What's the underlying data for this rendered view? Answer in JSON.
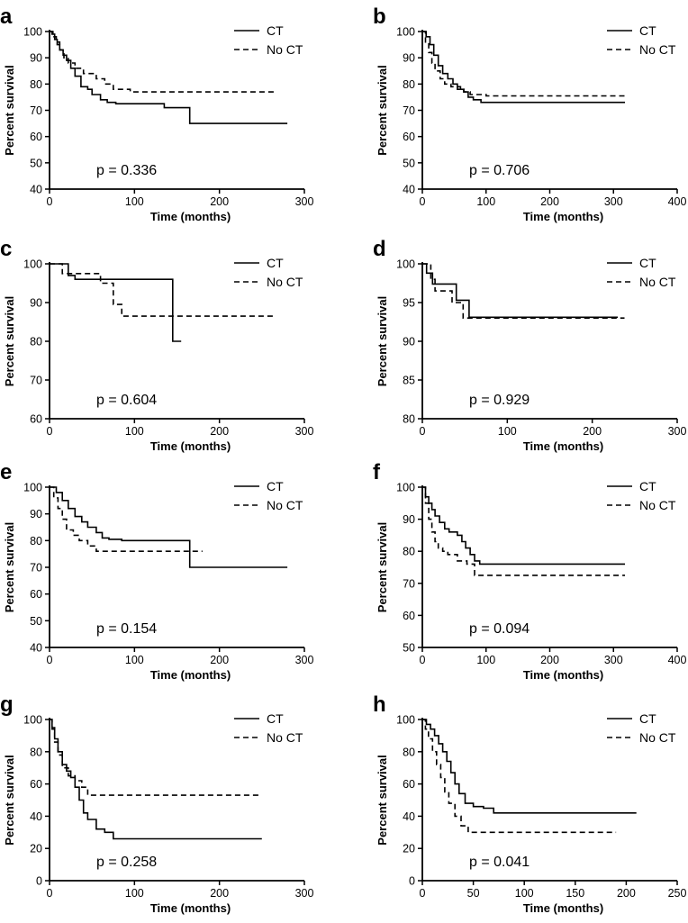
{
  "chart_data": [
    {
      "panel": "a",
      "type": "line",
      "xlabel": "Time (months)",
      "ylabel": "Percent survival",
      "xlim": [
        0,
        300
      ],
      "ylim": [
        40,
        100
      ],
      "xticks": [
        0,
        100,
        200,
        300
      ],
      "yticks": [
        40,
        50,
        60,
        70,
        80,
        90,
        100
      ],
      "p_value": "p = 0.336",
      "legend": [
        "CT",
        "No CT"
      ],
      "series": [
        {
          "name": "CT",
          "style": "solid",
          "x": [
            0,
            3,
            6,
            9,
            12,
            16,
            20,
            25,
            30,
            37,
            45,
            50,
            55,
            60,
            68,
            78,
            88,
            95,
            135,
            165,
            280
          ],
          "y": [
            100,
            99,
            97,
            95,
            93,
            91,
            89,
            86,
            83,
            79,
            78,
            76,
            76,
            74,
            73,
            72.5,
            72.5,
            72.5,
            71,
            65,
            65
          ]
        },
        {
          "name": "No CT",
          "style": "dashed",
          "x": [
            0,
            4,
            8,
            12,
            17,
            22,
            30,
            40,
            55,
            65,
            75,
            80,
            95,
            110,
            130,
            265
          ],
          "y": [
            100,
            98,
            96,
            93,
            90,
            88,
            86,
            84,
            82,
            80,
            78,
            78,
            77,
            77,
            77,
            77
          ]
        }
      ]
    },
    {
      "panel": "b",
      "type": "line",
      "xlabel": "Time (months)",
      "ylabel": "Percent survival",
      "xlim": [
        0,
        400
      ],
      "ylim": [
        40,
        100
      ],
      "xticks": [
        0,
        100,
        200,
        300,
        400
      ],
      "yticks": [
        40,
        50,
        60,
        70,
        80,
        90,
        100
      ],
      "p_value": "p = 0.706",
      "legend": [
        "CT",
        "No CT"
      ],
      "series": [
        {
          "name": "CT",
          "style": "solid",
          "x": [
            0,
            6,
            12,
            18,
            25,
            32,
            40,
            48,
            55,
            60,
            65,
            72,
            80,
            92,
            318
          ],
          "y": [
            100,
            98,
            95,
            91,
            87,
            84,
            82,
            80,
            79,
            78,
            77,
            75,
            74,
            73,
            73
          ]
        },
        {
          "name": "No CT",
          "style": "dashed",
          "x": [
            0,
            5,
            10,
            15,
            20,
            28,
            35,
            45,
            55,
            65,
            75,
            85,
            100,
            318
          ],
          "y": [
            100,
            96,
            92,
            88,
            85,
            82,
            80,
            79,
            78,
            77,
            76,
            76,
            75.5,
            75.5
          ]
        }
      ]
    },
    {
      "panel": "c",
      "type": "line",
      "xlabel": "Time (months)",
      "ylabel": "Percent survival",
      "xlim": [
        0,
        300
      ],
      "ylim": [
        60,
        100
      ],
      "xticks": [
        0,
        100,
        200,
        300
      ],
      "yticks": [
        60,
        70,
        80,
        90,
        100
      ],
      "p_value": "p = 0.604",
      "legend": [
        "CT",
        "No CT"
      ],
      "series": [
        {
          "name": "CT",
          "style": "solid",
          "x": [
            0,
            22,
            30,
            135,
            145,
            155
          ],
          "y": [
            100,
            97,
            96,
            96,
            80,
            80
          ]
        },
        {
          "name": "No CT",
          "style": "dashed",
          "x": [
            0,
            15,
            25,
            60,
            75,
            85,
            95,
            265
          ],
          "y": [
            100,
            97.5,
            97.5,
            95,
            89.5,
            86.5,
            86.5,
            86.5
          ]
        }
      ]
    },
    {
      "panel": "d",
      "type": "line",
      "xlabel": "Time (months)",
      "ylabel": "Percent survival",
      "xlim": [
        0,
        300
      ],
      "ylim": [
        80,
        100
      ],
      "xticks": [
        0,
        100,
        200,
        300
      ],
      "yticks": [
        80,
        85,
        90,
        95,
        100
      ],
      "p_value": "p = 0.929",
      "legend": [
        "CT",
        "No CT"
      ],
      "series": [
        {
          "name": "CT",
          "style": "solid",
          "x": [
            0,
            5,
            12,
            40,
            55,
            230
          ],
          "y": [
            100,
            98.8,
            97.4,
            95.3,
            93.1,
            93.1
          ]
        },
        {
          "name": "No CT",
          "style": "dashed",
          "x": [
            0,
            10,
            15,
            35,
            48,
            238
          ],
          "y": [
            100,
            98,
            96.5,
            95,
            93,
            93
          ]
        }
      ]
    },
    {
      "panel": "e",
      "type": "line",
      "xlabel": "Time (months)",
      "ylabel": "Percent survival",
      "xlim": [
        0,
        300
      ],
      "ylim": [
        40,
        100
      ],
      "xticks": [
        0,
        100,
        200,
        300
      ],
      "yticks": [
        40,
        50,
        60,
        70,
        80,
        90,
        100
      ],
      "p_value": "p = 0.154",
      "legend": [
        "CT",
        "No CT"
      ],
      "series": [
        {
          "name": "CT",
          "style": "solid",
          "x": [
            0,
            8,
            15,
            22,
            30,
            38,
            45,
            55,
            62,
            70,
            85,
            100,
            165,
            280
          ],
          "y": [
            100,
            98,
            95,
            92,
            89,
            87,
            85,
            83,
            81,
            80.5,
            80,
            80,
            70,
            70
          ]
        },
        {
          "name": "No CT",
          "style": "dashed",
          "x": [
            0,
            5,
            10,
            15,
            20,
            28,
            35,
            45,
            55,
            65,
            80,
            180
          ],
          "y": [
            100,
            96,
            92,
            88,
            84,
            82,
            80,
            78,
            76,
            76,
            76,
            76
          ]
        }
      ]
    },
    {
      "panel": "f",
      "type": "line",
      "xlabel": "Time (months)",
      "ylabel": "Percent survival",
      "xlim": [
        0,
        400
      ],
      "ylim": [
        50,
        100
      ],
      "xticks": [
        0,
        100,
        200,
        300,
        400
      ],
      "yticks": [
        50,
        60,
        70,
        80,
        90,
        100
      ],
      "p_value": "p = 0.094",
      "legend": [
        "CT",
        "No CT"
      ],
      "series": [
        {
          "name": "CT",
          "style": "solid",
          "x": [
            0,
            5,
            10,
            15,
            20,
            27,
            35,
            42,
            55,
            62,
            68,
            75,
            82,
            90,
            318
          ],
          "y": [
            100,
            97,
            95,
            93,
            91,
            89,
            87,
            86,
            85,
            83,
            81,
            79,
            77,
            76,
            76
          ]
        },
        {
          "name": "No CT",
          "style": "dashed",
          "x": [
            0,
            5,
            10,
            15,
            20,
            25,
            32,
            40,
            55,
            70,
            82,
            318
          ],
          "y": [
            100,
            95,
            90,
            86,
            83,
            81,
            80,
            79,
            77,
            76,
            72.5,
            72.5
          ]
        }
      ]
    },
    {
      "panel": "g",
      "type": "line",
      "xlabel": "Time (months)",
      "ylabel": "Percent survival",
      "xlim": [
        0,
        300
      ],
      "ylim": [
        0,
        100
      ],
      "xticks": [
        0,
        100,
        200,
        300
      ],
      "yticks": [
        0,
        20,
        40,
        60,
        80,
        100
      ],
      "p_value": "p = 0.258",
      "legend": [
        "CT",
        "No CT"
      ],
      "series": [
        {
          "name": "CT",
          "style": "solid",
          "x": [
            0,
            3,
            6,
            10,
            15,
            20,
            25,
            30,
            35,
            40,
            45,
            55,
            65,
            75,
            250
          ],
          "y": [
            100,
            95,
            88,
            80,
            72,
            68,
            64,
            58,
            50,
            42,
            38,
            32,
            30,
            26,
            26
          ]
        },
        {
          "name": "No CT",
          "style": "dashed",
          "x": [
            0,
            3,
            6,
            10,
            15,
            22,
            30,
            38,
            45,
            248
          ],
          "y": [
            100,
            94,
            86,
            78,
            70,
            65,
            62,
            58,
            53,
            53
          ]
        }
      ]
    },
    {
      "panel": "h",
      "type": "line",
      "xlabel": "Time (months)",
      "ylabel": "Percent survival",
      "xlim": [
        0,
        250
      ],
      "ylim": [
        0,
        100
      ],
      "xticks": [
        0,
        50,
        100,
        150,
        200,
        250
      ],
      "yticks": [
        0,
        20,
        40,
        60,
        80,
        100
      ],
      "p_value": "p = 0.041",
      "legend": [
        "CT",
        "No CT"
      ],
      "series": [
        {
          "name": "CT",
          "style": "solid",
          "x": [
            0,
            4,
            8,
            12,
            16,
            20,
            24,
            28,
            32,
            36,
            42,
            50,
            60,
            70,
            210
          ],
          "y": [
            100,
            97,
            94,
            90,
            85,
            80,
            74,
            67,
            60,
            54,
            48,
            46,
            45,
            42,
            42
          ]
        },
        {
          "name": "No CT",
          "style": "dashed",
          "x": [
            0,
            3,
            6,
            10,
            14,
            18,
            22,
            26,
            32,
            38,
            45,
            190
          ],
          "y": [
            100,
            94,
            88,
            80,
            72,
            64,
            55,
            48,
            40,
            34,
            30,
            30
          ]
        }
      ]
    }
  ]
}
